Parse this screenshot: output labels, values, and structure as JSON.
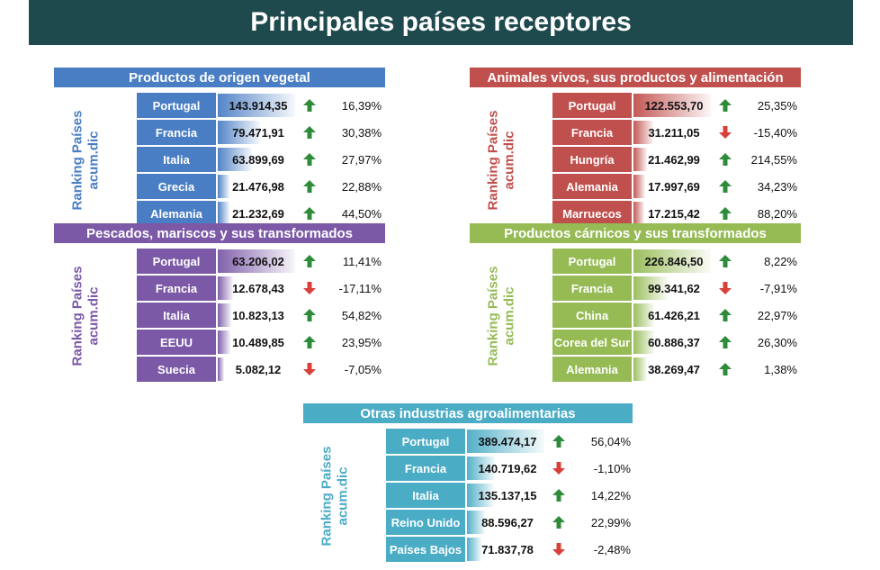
{
  "title": "Principales países receptores",
  "side_label": [
    "Ranking Países",
    "acum.dic"
  ],
  "colors": {
    "up": "#2e8b3a",
    "down": "#d9403a"
  },
  "chart_data": [
    {
      "type": "bar",
      "title": "Productos de origen vegetal",
      "color": "#4a7ec4",
      "categories": [
        "Portugal",
        "Francia",
        "Italia",
        "Grecia",
        "Alemania"
      ],
      "values": [
        143914.35,
        79471.91,
        63899.69,
        21476.98,
        21232.69
      ],
      "value_labels": [
        "143.914,35",
        "79.471,91",
        "63.899,69",
        "21.476,98",
        "21.232,69"
      ],
      "change": [
        "16,39%",
        "30,38%",
        "27,97%",
        "22,88%",
        "44,50%"
      ],
      "direction": [
        "up",
        "up",
        "up",
        "up",
        "up"
      ]
    },
    {
      "type": "bar",
      "title": "Animales vivos, sus productos y alimentación",
      "color": "#c0504d",
      "categories": [
        "Portugal",
        "Francia",
        "Hungría",
        "Alemania",
        "Marruecos"
      ],
      "values": [
        122553.7,
        31211.05,
        21462.99,
        17997.69,
        17215.42
      ],
      "value_labels": [
        "122.553,70",
        "31.211,05",
        "21.462,99",
        "17.997,69",
        "17.215,42"
      ],
      "change": [
        "25,35%",
        "-15,40%",
        "214,55%",
        "34,23%",
        "88,20%"
      ],
      "direction": [
        "up",
        "down",
        "up",
        "up",
        "up"
      ]
    },
    {
      "type": "bar",
      "title": "Pescados, mariscos y sus transformados",
      "color": "#7b59a6",
      "categories": [
        "Portugal",
        "Francia",
        "Italia",
        "EEUU",
        "Suecia"
      ],
      "values": [
        63206.02,
        12678.43,
        10823.13,
        10489.85,
        5082.12
      ],
      "value_labels": [
        "63.206,02",
        "12.678,43",
        "10.823,13",
        "10.489,85",
        "5.082,12"
      ],
      "change": [
        "11,41%",
        "-17,11%",
        "54,82%",
        "23,95%",
        "-7,05%"
      ],
      "direction": [
        "up",
        "down",
        "up",
        "up",
        "down"
      ]
    },
    {
      "type": "bar",
      "title": "Productos cárnicos y sus transformados",
      "color": "#96bb55",
      "categories": [
        "Portugal",
        "Francia",
        "China",
        "Corea del Sur",
        "Alemania"
      ],
      "values": [
        226846.5,
        99341.62,
        61426.21,
        60886.37,
        38269.47
      ],
      "value_labels": [
        "226.846,50",
        "99.341,62",
        "61.426,21",
        "60.886,37",
        "38.269,47"
      ],
      "change": [
        "8,22%",
        "-7,91%",
        "22,97%",
        "26,30%",
        "1,38%"
      ],
      "direction": [
        "up",
        "down",
        "up",
        "up",
        "up"
      ]
    },
    {
      "type": "bar",
      "title": "Otras industrias agroalimentarias",
      "color": "#4bacc6",
      "categories": [
        "Portugal",
        "Francia",
        "Italia",
        "Reino Unido",
        "Países Bajos"
      ],
      "values": [
        389474.17,
        140719.62,
        135137.15,
        88596.27,
        71837.78
      ],
      "value_labels": [
        "389.474,17",
        "140.719,62",
        "135.137,15",
        "88.596,27",
        "71.837,78"
      ],
      "change": [
        "56,04%",
        "-1,10%",
        "14,22%",
        "22,99%",
        "-2,48%"
      ],
      "direction": [
        "up",
        "down",
        "up",
        "up",
        "down"
      ]
    }
  ]
}
